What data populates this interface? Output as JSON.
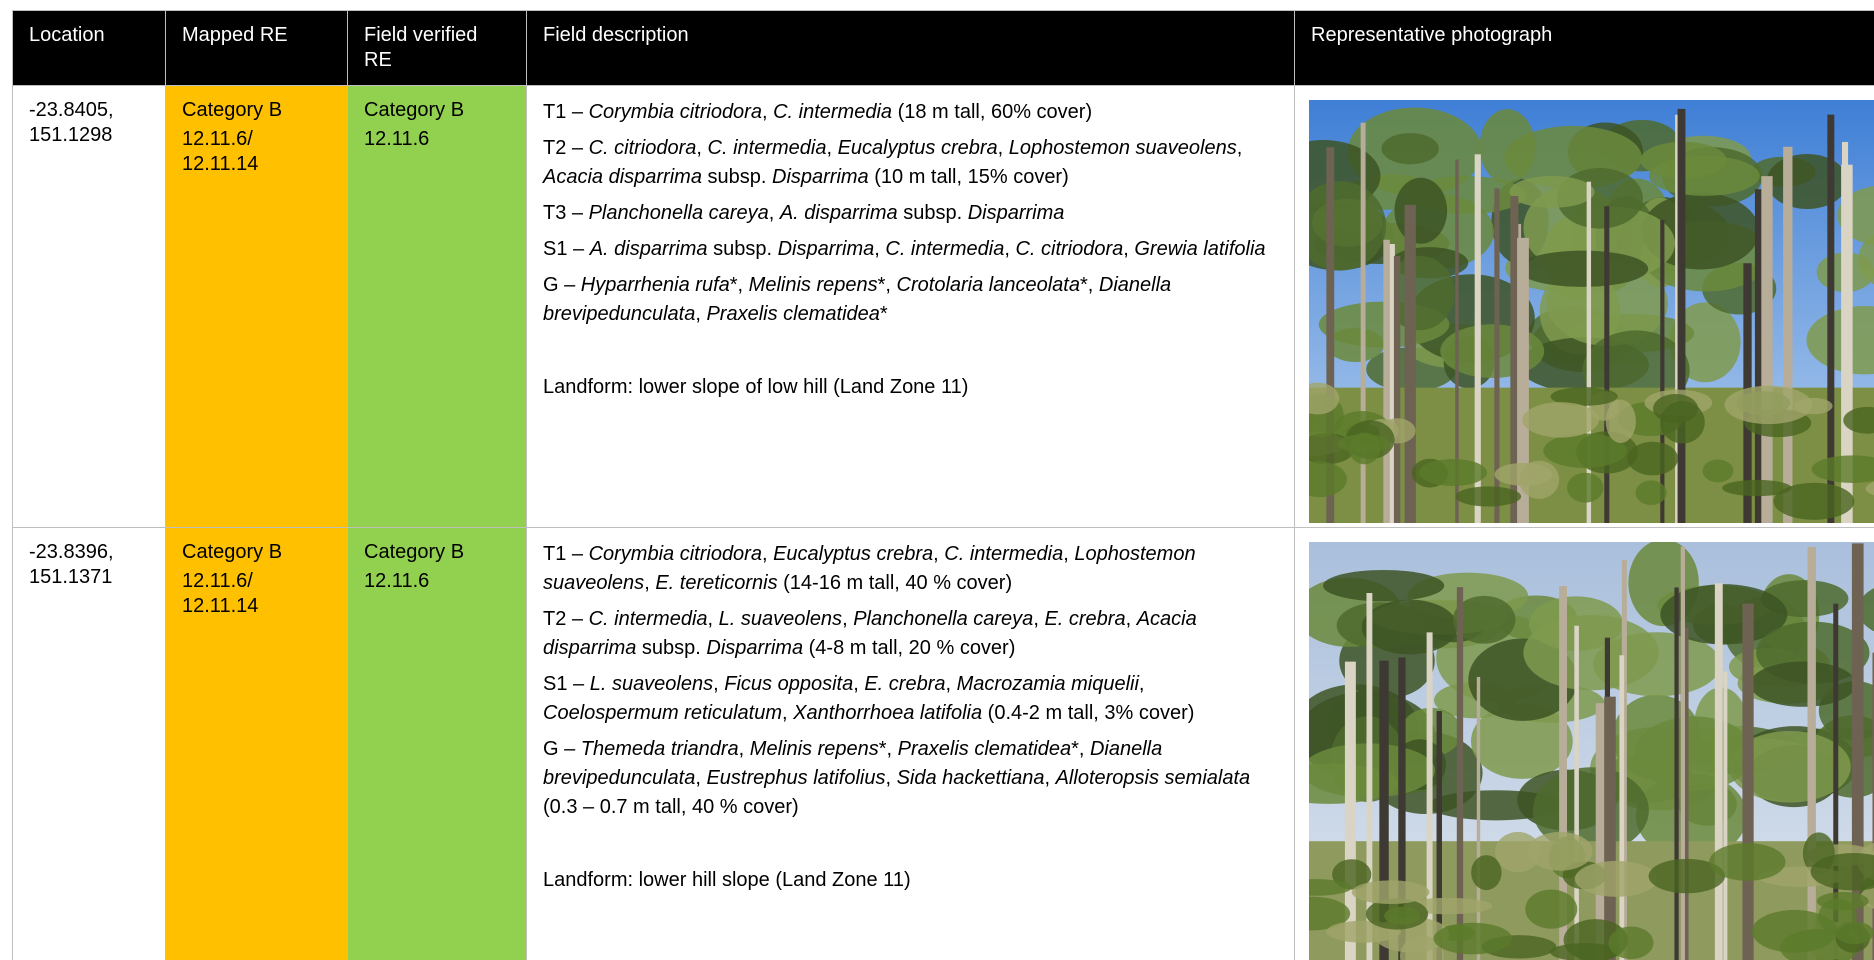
{
  "header": {
    "columns": [
      "Location",
      "Mapped RE",
      "Field verified RE",
      "Field description",
      "Representative photograph"
    ]
  },
  "rows": [
    {
      "location": "-23.8405, 151.1298",
      "mapped_re": {
        "category": "Category B",
        "code": "12.11.6/ 12.11.14"
      },
      "verified_re": {
        "category": "Category B",
        "code": "12.11.6"
      },
      "description": [
        [
          "T1 – ",
          {
            "t": "Corymbia citriodora",
            "i": true
          },
          ", ",
          {
            "t": "C. intermedia",
            "i": true
          },
          " (18 m tall, 60% cover)"
        ],
        [
          "T2 – ",
          {
            "t": "C. citriodora",
            "i": true
          },
          ", ",
          {
            "t": "C. intermedia",
            "i": true
          },
          ", ",
          {
            "t": "Eucalyptus crebra",
            "i": true
          },
          ", ",
          {
            "t": "Lophostemon suaveolens",
            "i": true
          },
          ", ",
          {
            "t": "Acacia disparrima",
            "i": true
          },
          " subsp. ",
          {
            "t": "Disparrima",
            "i": true
          },
          " (10 m tall, 15% cover)"
        ],
        [
          "T3 – ",
          {
            "t": "Planchonella careya",
            "i": true
          },
          ", ",
          {
            "t": "A. disparrima",
            "i": true
          },
          " subsp. ",
          {
            "t": "Disparrima",
            "i": true
          }
        ],
        [
          "S1 – ",
          {
            "t": "A. disparrima",
            "i": true
          },
          " subsp. ",
          {
            "t": "Disparrima",
            "i": true
          },
          ", ",
          {
            "t": "C. intermedia",
            "i": true
          },
          ", ",
          {
            "t": "C. citriodora",
            "i": true
          },
          ", ",
          {
            "t": "Grewia latifolia",
            "i": true
          }
        ],
        [
          "G – ",
          {
            "t": "Hyparrhenia rufa",
            "i": true
          },
          "*, ",
          {
            "t": "Melinis repens",
            "i": true
          },
          "*, ",
          {
            "t": "Crotolaria lanceolata",
            "i": true
          },
          "*, ",
          {
            "t": "Dianella brevipedunculata",
            "i": true
          },
          ", ",
          {
            "t": "Praxelis clematidea",
            "i": true
          },
          "*"
        ]
      ],
      "landform": "Landform: lower slope of low hill (Land Zone 11)"
    },
    {
      "location": "-23.8396, 151.1371",
      "mapped_re": {
        "category": "Category B",
        "code": "12.11.6/ 12.11.14"
      },
      "verified_re": {
        "category": "Category B",
        "code": "12.11.6"
      },
      "description": [
        [
          "T1 – ",
          {
            "t": "Corymbia citriodora",
            "i": true
          },
          ", ",
          {
            "t": "Eucalyptus crebra",
            "i": true
          },
          ", ",
          {
            "t": "C. intermedia",
            "i": true
          },
          ", ",
          {
            "t": "Lophostemon suaveolens",
            "i": true
          },
          ", ",
          {
            "t": "E. tereticornis",
            "i": true
          },
          " (14-16 m tall, 40 % cover)"
        ],
        [
          "T2 – ",
          {
            "t": "C. intermedia",
            "i": true
          },
          ", ",
          {
            "t": "L. suaveolens",
            "i": true
          },
          ", ",
          {
            "t": "Planchonella careya",
            "i": true
          },
          ", ",
          {
            "t": "E. crebra",
            "i": true
          },
          ", ",
          {
            "t": "Acacia disparrima",
            "i": true
          },
          " subsp. ",
          {
            "t": "Disparrima",
            "i": true
          },
          " (4-8 m tall, 20 % cover)"
        ],
        [
          "S1 – ",
          {
            "t": "L. suaveolens",
            "i": true
          },
          ", ",
          {
            "t": "Ficus opposita",
            "i": true
          },
          ", ",
          {
            "t": "E. crebra",
            "i": true
          },
          ", ",
          {
            "t": "Macrozamia miquelii",
            "i": true
          },
          ", ",
          {
            "t": "Coelospermum reticulatum",
            "i": true
          },
          ", ",
          {
            "t": "Xanthorrhoea latifolia",
            "i": true
          },
          " (0.4-2 m tall, 3% cover)"
        ],
        [
          "G – ",
          {
            "t": "Themeda triandra",
            "i": true
          },
          ", ",
          {
            "t": "Melinis repens",
            "i": true
          },
          "*, ",
          {
            "t": "Praxelis clematidea",
            "i": true
          },
          "*, ",
          {
            "t": "Dianella brevipedunculata",
            "i": true
          },
          ", ",
          {
            "t": "Eustrephus latifolius",
            "i": true
          },
          ", ",
          {
            "t": "Sida hackettiana",
            "i": true
          },
          ", ",
          {
            "t": "Alloteropsis semialata",
            "i": true
          },
          " (0.3 – 0.7 m tall, 40 % cover)"
        ]
      ],
      "landform": "Landform: lower hill slope (Land Zone 11)"
    }
  ]
}
